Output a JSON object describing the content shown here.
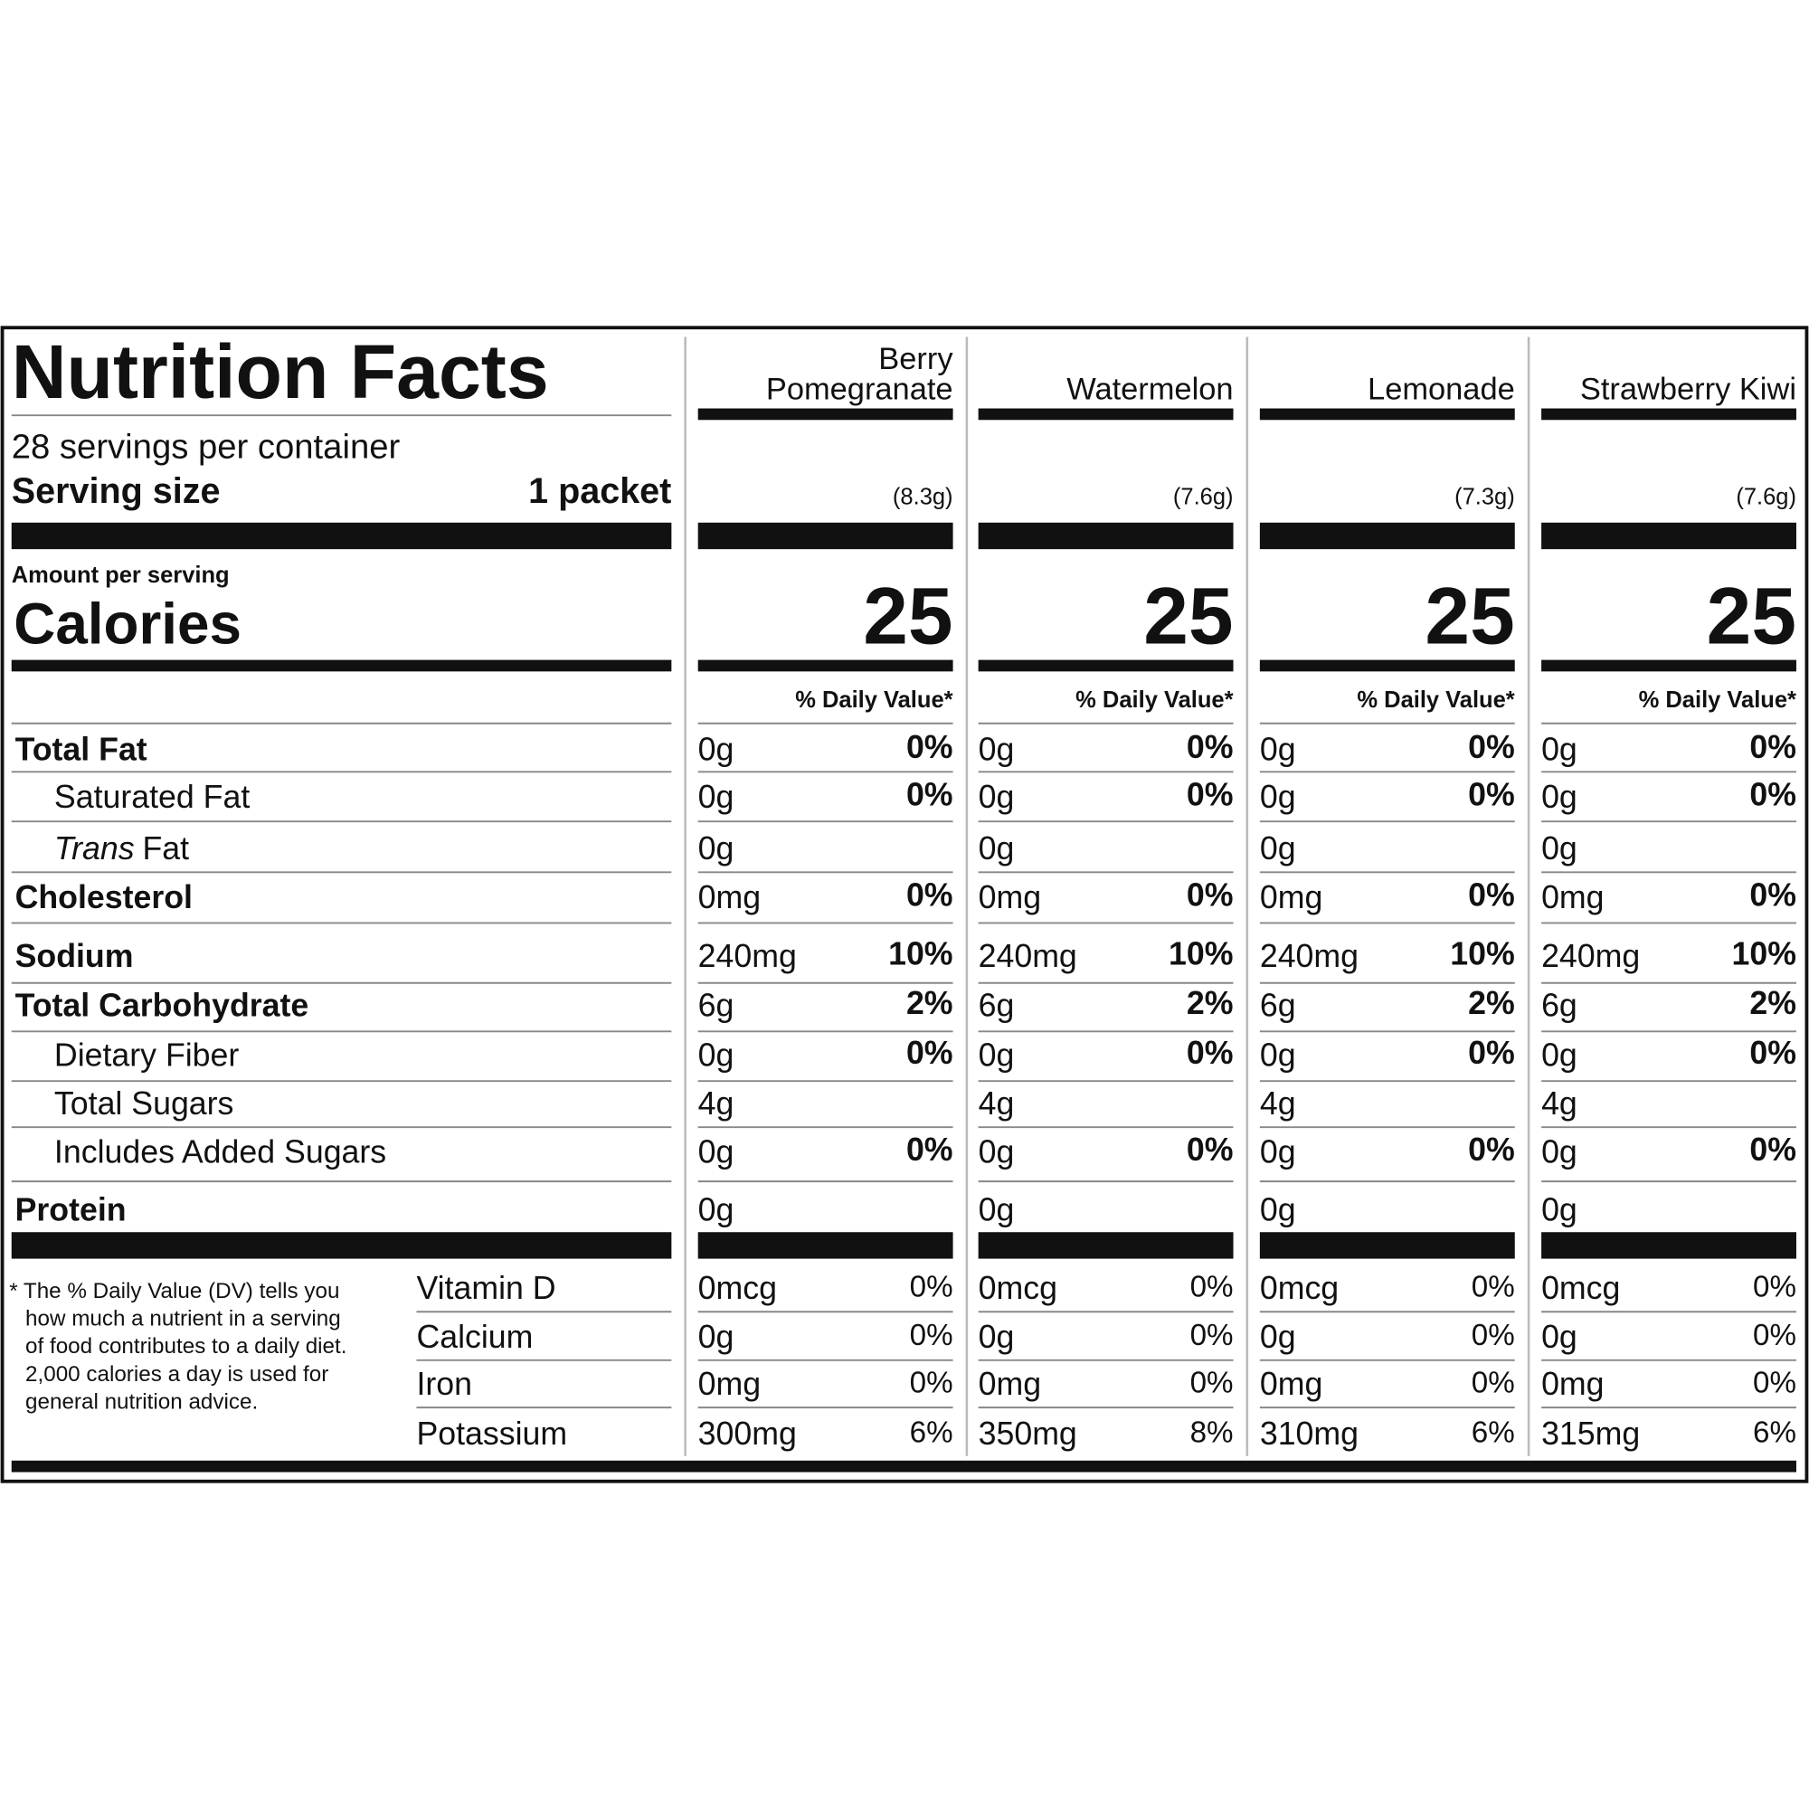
{
  "header": {
    "title": "Nutrition Facts",
    "servings": "28 servings per container",
    "serving_size_label": "Serving size",
    "serving_size": "1 packet",
    "amount_per_serving": "Amount per serving",
    "calories_label": "Calories",
    "daily_value_header": "% Daily Value*"
  },
  "nutrients": [
    {
      "label": "Total Fat",
      "bold": true,
      "indent": false
    },
    {
      "label": "Saturated Fat",
      "bold": false,
      "indent": true
    },
    {
      "label_prefix": "Trans",
      "label": "Fat",
      "bold": false,
      "indent": true
    },
    {
      "label": "Cholesterol",
      "bold": true,
      "indent": false
    },
    {
      "label": "Sodium",
      "bold": true,
      "indent": false
    },
    {
      "label": "Total Carbohydrate",
      "bold": true,
      "indent": false
    },
    {
      "label": "Dietary Fiber",
      "bold": false,
      "indent": true
    },
    {
      "label": "Total Sugars",
      "bold": false,
      "indent": true
    },
    {
      "label": "Includes Added Sugars",
      "bold": false,
      "indent": true
    },
    {
      "label": "Protein",
      "bold": true,
      "indent": false
    }
  ],
  "vitamins": [
    "Vitamin D",
    "Calcium",
    "Iron",
    "Potassium"
  ],
  "footnote": [
    "* The % Daily Value (DV) tells you",
    "how much a nutrient in a serving",
    "of food contributes to a daily diet.",
    "2,000 calories a day is used for",
    "general nutrition advice."
  ],
  "flavors": [
    {
      "name_lines": [
        "Berry",
        "Pomegranate"
      ],
      "weight": "(8.3g)",
      "calories": "25",
      "nutrients": [
        {
          "amount": "0g",
          "dv": "0%"
        },
        {
          "amount": "0g",
          "dv": "0%"
        },
        {
          "amount": "0g",
          "dv": null
        },
        {
          "amount": "0mg",
          "dv": "0%"
        },
        {
          "amount": "240mg",
          "dv": "10%"
        },
        {
          "amount": "6g",
          "dv": "2%"
        },
        {
          "amount": "0g",
          "dv": "0%"
        },
        {
          "amount": "4g",
          "dv": null
        },
        {
          "amount": "0g",
          "dv": "0%"
        },
        {
          "amount": "0g",
          "dv": null
        }
      ],
      "vitamins": [
        {
          "amount": "0mcg",
          "dv": "0%"
        },
        {
          "amount": "0g",
          "dv": "0%"
        },
        {
          "amount": "0mg",
          "dv": "0%"
        },
        {
          "amount": "300mg",
          "dv": "6%"
        }
      ]
    },
    {
      "name_lines": [
        "Watermelon"
      ],
      "weight": "(7.6g)",
      "calories": "25",
      "nutrients": [
        {
          "amount": "0g",
          "dv": "0%"
        },
        {
          "amount": "0g",
          "dv": "0%"
        },
        {
          "amount": "0g",
          "dv": null
        },
        {
          "amount": "0mg",
          "dv": "0%"
        },
        {
          "amount": "240mg",
          "dv": "10%"
        },
        {
          "amount": "6g",
          "dv": "2%"
        },
        {
          "amount": "0g",
          "dv": "0%"
        },
        {
          "amount": "4g",
          "dv": null
        },
        {
          "amount": "0g",
          "dv": "0%"
        },
        {
          "amount": "0g",
          "dv": null
        }
      ],
      "vitamins": [
        {
          "amount": "0mcg",
          "dv": "0%"
        },
        {
          "amount": "0g",
          "dv": "0%"
        },
        {
          "amount": "0mg",
          "dv": "0%"
        },
        {
          "amount": "350mg",
          "dv": "8%"
        }
      ]
    },
    {
      "name_lines": [
        "Lemonade"
      ],
      "weight": "(7.3g)",
      "calories": "25",
      "nutrients": [
        {
          "amount": "0g",
          "dv": "0%"
        },
        {
          "amount": "0g",
          "dv": "0%"
        },
        {
          "amount": "0g",
          "dv": null
        },
        {
          "amount": "0mg",
          "dv": "0%"
        },
        {
          "amount": "240mg",
          "dv": "10%"
        },
        {
          "amount": "6g",
          "dv": "2%"
        },
        {
          "amount": "0g",
          "dv": "0%"
        },
        {
          "amount": "4g",
          "dv": null
        },
        {
          "amount": "0g",
          "dv": "0%"
        },
        {
          "amount": "0g",
          "dv": null
        }
      ],
      "vitamins": [
        {
          "amount": "0mcg",
          "dv": "0%"
        },
        {
          "amount": "0g",
          "dv": "0%"
        },
        {
          "amount": "0mg",
          "dv": "0%"
        },
        {
          "amount": "310mg",
          "dv": "6%"
        }
      ]
    },
    {
      "name_lines": [
        "Strawberry Kiwi"
      ],
      "weight": "(7.6g)",
      "calories": "25",
      "nutrients": [
        {
          "amount": "0g",
          "dv": "0%"
        },
        {
          "amount": "0g",
          "dv": "0%"
        },
        {
          "amount": "0g",
          "dv": null
        },
        {
          "amount": "0mg",
          "dv": "0%"
        },
        {
          "amount": "240mg",
          "dv": "10%"
        },
        {
          "amount": "6g",
          "dv": "2%"
        },
        {
          "amount": "0g",
          "dv": "0%"
        },
        {
          "amount": "4g",
          "dv": null
        },
        {
          "amount": "0g",
          "dv": "0%"
        },
        {
          "amount": "0g",
          "dv": null
        }
      ],
      "vitamins": [
        {
          "amount": "0mcg",
          "dv": "0%"
        },
        {
          "amount": "0g",
          "dv": "0%"
        },
        {
          "amount": "0mg",
          "dv": "0%"
        },
        {
          "amount": "315mg",
          "dv": "6%"
        }
      ]
    }
  ]
}
